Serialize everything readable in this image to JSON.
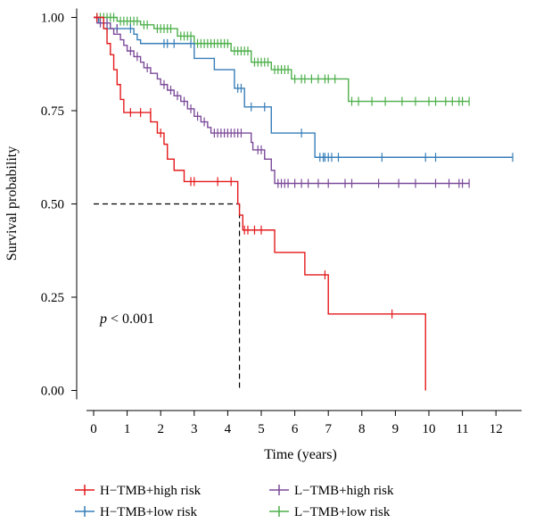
{
  "chart_data": {
    "type": "line",
    "subtype": "kaplan-meier",
    "xlabel": "Time (years)",
    "ylabel": "Survival probability",
    "xlim": [
      0,
      12.5
    ],
    "ylim": [
      0,
      1
    ],
    "x_ticks": [
      "0",
      "1",
      "2",
      "3",
      "4",
      "5",
      "6",
      "7",
      "8",
      "9",
      "10",
      "11",
      "12"
    ],
    "y_ticks": [
      "0.00",
      "0.25",
      "0.50",
      "0.75",
      "1.00"
    ],
    "grid": false,
    "legend_position": "bottom",
    "annotation": {
      "p_italic": "p",
      "p_rest": " < 0.001"
    },
    "median_reference": {
      "x": 4.35,
      "y": 0.5
    },
    "series": [
      {
        "name": "H−TMB+high risk",
        "color": "#e41a1c",
        "steps": [
          [
            0,
            1
          ],
          [
            0.3,
            0.97
          ],
          [
            0.4,
            0.93
          ],
          [
            0.5,
            0.9
          ],
          [
            0.6,
            0.86
          ],
          [
            0.7,
            0.82
          ],
          [
            0.8,
            0.78
          ],
          [
            0.9,
            0.745
          ],
          [
            1.7,
            0.72
          ],
          [
            1.9,
            0.69
          ],
          [
            2.1,
            0.66
          ],
          [
            2.2,
            0.62
          ],
          [
            2.4,
            0.59
          ],
          [
            2.7,
            0.56
          ],
          [
            4.3,
            0.5
          ],
          [
            4.35,
            0.47
          ],
          [
            4.45,
            0.43
          ],
          [
            5.4,
            0.37
          ],
          [
            6.3,
            0.31
          ],
          [
            7.0,
            0.205
          ],
          [
            9.9,
            0.0
          ]
        ],
        "end": 9.9,
        "censors": [
          [
            0.1,
            1
          ],
          [
            1.1,
            0.745
          ],
          [
            1.4,
            0.745
          ],
          [
            1.7,
            0.745
          ],
          [
            2.0,
            0.69
          ],
          [
            2.9,
            0.56
          ],
          [
            3.0,
            0.56
          ],
          [
            3.7,
            0.56
          ],
          [
            4.1,
            0.56
          ],
          [
            4.5,
            0.43
          ],
          [
            4.6,
            0.43
          ],
          [
            4.8,
            0.43
          ],
          [
            5.0,
            0.43
          ],
          [
            6.9,
            0.31
          ],
          [
            8.9,
            0.205
          ]
        ]
      },
      {
        "name": "H−TMB+low risk",
        "color": "#377eb8",
        "steps": [
          [
            0,
            1
          ],
          [
            0.15,
            0.985
          ],
          [
            0.3,
            0.97
          ],
          [
            1.2,
            0.955
          ],
          [
            1.3,
            0.94
          ],
          [
            1.4,
            0.93
          ],
          [
            3.0,
            0.89
          ],
          [
            3.6,
            0.86
          ],
          [
            4.2,
            0.81
          ],
          [
            4.5,
            0.76
          ],
          [
            5.3,
            0.69
          ],
          [
            6.6,
            0.625
          ]
        ],
        "end": 12.5,
        "censors": [
          [
            0.4,
            0.97
          ],
          [
            0.7,
            0.97
          ],
          [
            1.1,
            0.97
          ],
          [
            2.1,
            0.93
          ],
          [
            2.2,
            0.93
          ],
          [
            2.4,
            0.93
          ],
          [
            2.9,
            0.93
          ],
          [
            4.3,
            0.81
          ],
          [
            4.4,
            0.81
          ],
          [
            4.7,
            0.76
          ],
          [
            5.1,
            0.76
          ],
          [
            6.2,
            0.69
          ],
          [
            6.75,
            0.625
          ],
          [
            6.85,
            0.625
          ],
          [
            6.9,
            0.625
          ],
          [
            7.0,
            0.625
          ],
          [
            7.1,
            0.625
          ],
          [
            7.3,
            0.625
          ],
          [
            8.6,
            0.625
          ],
          [
            9.9,
            0.625
          ],
          [
            10.2,
            0.625
          ],
          [
            12.5,
            0.625
          ]
        ]
      },
      {
        "name": "L−TMB+high risk",
        "color": "#7b4a99",
        "steps": [
          [
            0,
            1
          ],
          [
            0.1,
            0.985
          ],
          [
            0.5,
            0.97
          ],
          [
            0.6,
            0.955
          ],
          [
            0.8,
            0.94
          ],
          [
            0.9,
            0.925
          ],
          [
            1.0,
            0.91
          ],
          [
            1.2,
            0.895
          ],
          [
            1.4,
            0.88
          ],
          [
            1.5,
            0.865
          ],
          [
            1.7,
            0.85
          ],
          [
            1.9,
            0.835
          ],
          [
            2.0,
            0.82
          ],
          [
            2.2,
            0.805
          ],
          [
            2.4,
            0.79
          ],
          [
            2.6,
            0.775
          ],
          [
            2.8,
            0.755
          ],
          [
            3.0,
            0.735
          ],
          [
            3.2,
            0.72
          ],
          [
            3.4,
            0.705
          ],
          [
            3.5,
            0.69
          ],
          [
            4.7,
            0.665
          ],
          [
            4.75,
            0.645
          ],
          [
            5.1,
            0.62
          ],
          [
            5.3,
            0.59
          ],
          [
            5.4,
            0.555
          ]
        ],
        "end": 11.2,
        "censors": [
          [
            0.2,
            0.985
          ],
          [
            0.4,
            0.985
          ],
          [
            0.7,
            0.97
          ],
          [
            1.1,
            0.91
          ],
          [
            1.3,
            0.895
          ],
          [
            1.6,
            0.865
          ],
          [
            2.1,
            0.82
          ],
          [
            2.3,
            0.805
          ],
          [
            2.5,
            0.79
          ],
          [
            2.7,
            0.775
          ],
          [
            2.9,
            0.755
          ],
          [
            3.1,
            0.735
          ],
          [
            3.3,
            0.72
          ],
          [
            3.6,
            0.69
          ],
          [
            3.7,
            0.69
          ],
          [
            3.8,
            0.69
          ],
          [
            3.9,
            0.69
          ],
          [
            4.0,
            0.69
          ],
          [
            4.1,
            0.69
          ],
          [
            4.2,
            0.69
          ],
          [
            4.3,
            0.69
          ],
          [
            4.4,
            0.69
          ],
          [
            4.9,
            0.645
          ],
          [
            5.0,
            0.645
          ],
          [
            5.5,
            0.555
          ],
          [
            5.6,
            0.555
          ],
          [
            5.7,
            0.555
          ],
          [
            5.8,
            0.555
          ],
          [
            6.0,
            0.555
          ],
          [
            6.2,
            0.555
          ],
          [
            6.4,
            0.555
          ],
          [
            6.7,
            0.555
          ],
          [
            7.0,
            0.555
          ],
          [
            7.5,
            0.555
          ],
          [
            7.7,
            0.555
          ],
          [
            8.5,
            0.555
          ],
          [
            9.1,
            0.555
          ],
          [
            9.6,
            0.555
          ],
          [
            10.2,
            0.555
          ],
          [
            10.6,
            0.555
          ],
          [
            10.9,
            0.555
          ],
          [
            11.0,
            0.555
          ],
          [
            11.2,
            0.555
          ]
        ]
      },
      {
        "name": "L−TMB+low risk",
        "color": "#4daf4a",
        "steps": [
          [
            0,
            1
          ],
          [
            0.7,
            0.99
          ],
          [
            1.4,
            0.98
          ],
          [
            1.8,
            0.97
          ],
          [
            2.5,
            0.95
          ],
          [
            3.0,
            0.93
          ],
          [
            4.1,
            0.91
          ],
          [
            4.7,
            0.88
          ],
          [
            5.3,
            0.86
          ],
          [
            5.9,
            0.835
          ],
          [
            7.6,
            0.775
          ]
        ],
        "end": 11.2,
        "censors": [
          [
            0.1,
            1
          ],
          [
            0.2,
            1
          ],
          [
            0.3,
            1
          ],
          [
            0.4,
            1
          ],
          [
            0.5,
            1
          ],
          [
            0.6,
            1
          ],
          [
            0.8,
            0.99
          ],
          [
            0.9,
            0.99
          ],
          [
            1.0,
            0.99
          ],
          [
            1.1,
            0.99
          ],
          [
            1.2,
            0.99
          ],
          [
            1.3,
            0.99
          ],
          [
            1.5,
            0.98
          ],
          [
            1.6,
            0.98
          ],
          [
            1.9,
            0.97
          ],
          [
            2.0,
            0.97
          ],
          [
            2.1,
            0.97
          ],
          [
            2.2,
            0.97
          ],
          [
            2.3,
            0.97
          ],
          [
            2.6,
            0.95
          ],
          [
            2.7,
            0.95
          ],
          [
            2.8,
            0.95
          ],
          [
            2.9,
            0.95
          ],
          [
            3.1,
            0.93
          ],
          [
            3.2,
            0.93
          ],
          [
            3.3,
            0.93
          ],
          [
            3.4,
            0.93
          ],
          [
            3.5,
            0.93
          ],
          [
            3.6,
            0.93
          ],
          [
            3.7,
            0.93
          ],
          [
            3.8,
            0.93
          ],
          [
            3.9,
            0.93
          ],
          [
            4.0,
            0.93
          ],
          [
            4.2,
            0.91
          ],
          [
            4.3,
            0.91
          ],
          [
            4.4,
            0.91
          ],
          [
            4.5,
            0.91
          ],
          [
            4.6,
            0.91
          ],
          [
            4.8,
            0.88
          ],
          [
            4.9,
            0.88
          ],
          [
            5.0,
            0.88
          ],
          [
            5.1,
            0.88
          ],
          [
            5.2,
            0.88
          ],
          [
            5.4,
            0.86
          ],
          [
            5.5,
            0.86
          ],
          [
            5.6,
            0.86
          ],
          [
            5.7,
            0.86
          ],
          [
            5.8,
            0.86
          ],
          [
            6.0,
            0.835
          ],
          [
            6.2,
            0.835
          ],
          [
            6.3,
            0.835
          ],
          [
            6.5,
            0.835
          ],
          [
            6.7,
            0.835
          ],
          [
            6.9,
            0.835
          ],
          [
            7.0,
            0.835
          ],
          [
            7.2,
            0.835
          ],
          [
            7.7,
            0.775
          ],
          [
            7.9,
            0.775
          ],
          [
            8.3,
            0.775
          ],
          [
            8.7,
            0.775
          ],
          [
            9.2,
            0.775
          ],
          [
            9.6,
            0.775
          ],
          [
            10.0,
            0.775
          ],
          [
            10.2,
            0.775
          ],
          [
            10.5,
            0.775
          ],
          [
            10.7,
            0.775
          ],
          [
            10.9,
            0.775
          ],
          [
            11.0,
            0.775
          ],
          [
            11.2,
            0.775
          ]
        ]
      }
    ]
  }
}
